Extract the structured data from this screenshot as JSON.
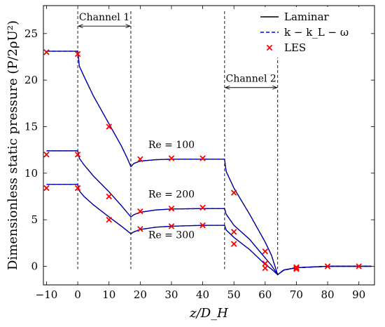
{
  "chart_data": {
    "type": "line",
    "xlabel": "z/D_H",
    "ylabel": "Dimensionless static pressure  (P/2ρU²)",
    "xlim": [
      -11,
      95
    ],
    "ylim": [
      -2,
      28
    ],
    "xticks": [
      -10,
      0,
      10,
      20,
      30,
      40,
      50,
      60,
      70,
      80,
      90
    ],
    "yticks": [
      0,
      5,
      10,
      15,
      20,
      25
    ],
    "grid": false,
    "legend_position": "top-right",
    "legend": [
      {
        "label": "Laminar",
        "style": "solid",
        "color": "#000000"
      },
      {
        "label": "k − k_L − ω",
        "style": "dashed",
        "color": "#0000ff"
      },
      {
        "label": "LES",
        "style": "cross-marker",
        "color": "#ff0000"
      }
    ],
    "channel_markers": [
      0,
      17,
      47,
      64
    ],
    "annotations": [
      {
        "text": "Channel 1",
        "x0": 0,
        "x1": 17,
        "y": 25.8
      },
      {
        "text": "Channel 2",
        "x0": 47,
        "x1": 64,
        "y": 19.2
      }
    ],
    "curve_labels": [
      {
        "text": "Re = 100",
        "x": 30,
        "y": 12.7
      },
      {
        "text": "Re = 200",
        "x": 30,
        "y": 7.4
      },
      {
        "text": "Re = 300",
        "x": 30,
        "y": 3.0
      }
    ],
    "series": [
      {
        "name": "Re = 100",
        "model": [
          [
            -10,
            23.1
          ],
          [
            0,
            23.1
          ],
          [
            0.5,
            21.5
          ],
          [
            2,
            20.4
          ],
          [
            5,
            18.3
          ],
          [
            10,
            15.3
          ],
          [
            14,
            12.9
          ],
          [
            16,
            11.5
          ],
          [
            17,
            10.7
          ],
          [
            18,
            11.05
          ],
          [
            20,
            11.3
          ],
          [
            25,
            11.45
          ],
          [
            30,
            11.5
          ],
          [
            40,
            11.5
          ],
          [
            47,
            11.5
          ],
          [
            47.5,
            10.2
          ],
          [
            50,
            8.4
          ],
          [
            55,
            5.6
          ],
          [
            60,
            2.6
          ],
          [
            62,
            1.2
          ],
          [
            64,
            -0.9
          ],
          [
            66,
            -0.4
          ],
          [
            70,
            -0.15
          ],
          [
            80,
            0
          ],
          [
            94,
            0
          ]
        ],
        "les": [
          [
            -10,
            23.0
          ],
          [
            0,
            22.8
          ],
          [
            10,
            15.0
          ],
          [
            20,
            11.5
          ],
          [
            30,
            11.6
          ],
          [
            40,
            11.6
          ],
          [
            50,
            7.9
          ],
          [
            60,
            1.6
          ],
          [
            70,
            -0.1
          ]
        ]
      },
      {
        "name": "Re = 200",
        "model": [
          [
            -10,
            12.4
          ],
          [
            0,
            12.4
          ],
          [
            0.5,
            11.6
          ],
          [
            2,
            10.9
          ],
          [
            5,
            9.7
          ],
          [
            10,
            8.0
          ],
          [
            14,
            6.5
          ],
          [
            17,
            5.3
          ],
          [
            18,
            5.55
          ],
          [
            20,
            5.8
          ],
          [
            25,
            6.05
          ],
          [
            30,
            6.15
          ],
          [
            40,
            6.2
          ],
          [
            47,
            6.2
          ],
          [
            47.5,
            5.6
          ],
          [
            50,
            4.4
          ],
          [
            55,
            2.9
          ],
          [
            60,
            0.9
          ],
          [
            62,
            0.1
          ],
          [
            64,
            -0.9
          ],
          [
            66,
            -0.4
          ],
          [
            70,
            -0.15
          ],
          [
            80,
            0
          ],
          [
            94,
            0
          ]
        ],
        "les": [
          [
            -10,
            12.0
          ],
          [
            0,
            12.0
          ],
          [
            10,
            7.5
          ],
          [
            20,
            5.9
          ],
          [
            30,
            6.2
          ],
          [
            40,
            6.3
          ],
          [
            50,
            3.7
          ],
          [
            60,
            0.3
          ],
          [
            70,
            -0.2
          ]
        ]
      },
      {
        "name": "Re = 300",
        "model": [
          [
            -10,
            8.8
          ],
          [
            0,
            8.8
          ],
          [
            0.5,
            8.1
          ],
          [
            2,
            7.5
          ],
          [
            5,
            6.6
          ],
          [
            10,
            5.3
          ],
          [
            14,
            4.3
          ],
          [
            17,
            3.5
          ],
          [
            18,
            3.7
          ],
          [
            20,
            3.95
          ],
          [
            25,
            4.2
          ],
          [
            30,
            4.3
          ],
          [
            40,
            4.4
          ],
          [
            47,
            4.4
          ],
          [
            47.5,
            3.9
          ],
          [
            50,
            3.1
          ],
          [
            55,
            1.8
          ],
          [
            60,
            0.2
          ],
          [
            62,
            -0.3
          ],
          [
            64,
            -0.9
          ],
          [
            66,
            -0.4
          ],
          [
            70,
            -0.15
          ],
          [
            80,
            0
          ],
          [
            94,
            0
          ]
        ],
        "les": [
          [
            -10,
            8.4
          ],
          [
            0,
            8.4
          ],
          [
            10,
            5.0
          ],
          [
            20,
            4.0
          ],
          [
            30,
            4.3
          ],
          [
            40,
            4.4
          ],
          [
            50,
            2.4
          ],
          [
            60,
            -0.2
          ],
          [
            70,
            -0.3
          ],
          [
            80,
            0
          ],
          [
            90,
            0
          ]
        ]
      }
    ]
  }
}
